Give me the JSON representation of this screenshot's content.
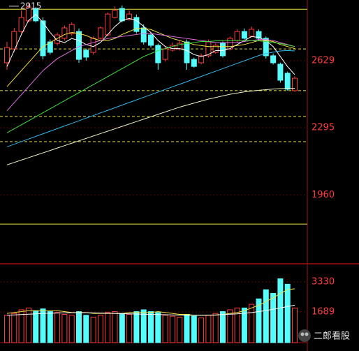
{
  "chart_data": {
    "type": "candlestick",
    "up_color": "#ff3c3c",
    "down_color": "#54fcfc",
    "open": [
      2619,
      2688,
      2775,
      2828,
      2890,
      2828,
      2723,
      2716,
      2741,
      2765,
      2775,
      2682,
      2671,
      2741,
      2758,
      2845,
      2890,
      2835,
      2845,
      2793,
      2758,
      2706,
      2636,
      2682,
      2688,
      2723,
      2636,
      2619,
      2654,
      2671,
      2716,
      2688,
      2730,
      2775,
      2751,
      2775,
      2741,
      2654,
      2612,
      2567,
      2480
    ],
    "high": [
      2723,
      2793,
      2880,
      2915,
      2896.31,
      2845,
      2735,
      2770,
      2805,
      2820,
      2790,
      2690,
      2750,
      2800,
      2870,
      2900,
      2905,
      2880,
      2860,
      2810,
      2770,
      2715,
      2700,
      2720,
      2730,
      2735,
      2645,
      2665,
      2735,
      2715,
      2725,
      2750,
      2785,
      2790,
      2800,
      2785,
      2750,
      2665,
      2620,
      2575,
      2550
    ],
    "low": [
      2584,
      2671,
      2765,
      2820,
      2820,
      2636,
      2660,
      2705,
      2730,
      2755,
      2619,
      2630,
      2660,
      2735,
      2750,
      2840,
      2820,
      2830,
      2765,
      2710,
      2695,
      2584,
      2625,
      2675,
      2680,
      2584,
      2595,
      2612,
      2645,
      2665,
      2645,
      2680,
      2720,
      2735,
      2745,
      2730,
      2640,
      2610,
      2520,
      2480,
      2475
    ],
    "close": [
      2695,
      2775,
      2845,
      2897,
      2828,
      2654,
      2671,
      2758,
      2793,
      2810,
      2636,
      2647,
      2741,
      2793,
      2862,
      2880,
      2828,
      2862,
      2775,
      2723,
      2706,
      2619,
      2688,
      2706,
      2716,
      2619,
      2601,
      2654,
      2723,
      2706,
      2654,
      2741,
      2775,
      2741,
      2786,
      2741,
      2654,
      2619,
      2532,
      2487,
      2542
    ],
    "ma_lines": [
      {
        "color": "#ffffff",
        "values": [
          2600,
          2680,
          2760,
          2830,
          2860,
          2820,
          2770,
          2730,
          2720,
          2740,
          2730,
          2710,
          2700,
          2720,
          2760,
          2800,
          2830,
          2840,
          2830,
          2800,
          2770,
          2730,
          2700,
          2690,
          2690,
          2680,
          2660,
          2650,
          2660,
          2680,
          2680,
          2690,
          2710,
          2730,
          2750,
          2745,
          2730,
          2700,
          2650,
          2600,
          2560
        ]
      },
      {
        "color": "#f0e040",
        "values": [
          2500,
          2540,
          2580,
          2620,
          2660,
          2700,
          2720,
          2740,
          2760,
          2770,
          2765,
          2755,
          2740,
          2730,
          2730,
          2740,
          2760,
          2775,
          2790,
          2790,
          2785,
          2770,
          2755,
          2740,
          2730,
          2720,
          2710,
          2705,
          2700,
          2700,
          2700,
          2700,
          2705,
          2710,
          2720,
          2730,
          2730,
          2725,
          2710,
          2700,
          2690
        ]
      },
      {
        "color": "#e070e0",
        "values": [
          2380,
          2420,
          2460,
          2500,
          2540,
          2580,
          2610,
          2640,
          2660,
          2680,
          2700,
          2710,
          2720,
          2730,
          2740,
          2745,
          2750,
          2755,
          2760,
          2765,
          2765,
          2760,
          2755,
          2750,
          2745,
          2740,
          2735,
          2730,
          2725,
          2720,
          2720,
          2720,
          2720,
          2725,
          2730,
          2735,
          2735,
          2730,
          2720,
          2710,
          2700
        ]
      },
      {
        "color": "#40e040",
        "values": [
          2270,
          2290,
          2310,
          2330,
          2350,
          2370,
          2390,
          2410,
          2430,
          2450,
          2470,
          2490,
          2510,
          2530,
          2550,
          2570,
          2590,
          2610,
          2630,
          2650,
          2665,
          2680,
          2690,
          2700,
          2710,
          2715,
          2720,
          2725,
          2725,
          2728,
          2730,
          2730,
          2730,
          2730,
          2730,
          2728,
          2725,
          2720,
          2715,
          2708,
          2700
        ]
      },
      {
        "color": "#30b8e8",
        "values": [
          2200,
          2213,
          2226,
          2239,
          2252,
          2265,
          2278,
          2291,
          2304,
          2317,
          2330,
          2343,
          2356,
          2369,
          2382,
          2395,
          2408,
          2421,
          2434,
          2447,
          2460,
          2473,
          2486,
          2499,
          2512,
          2525,
          2538,
          2551,
          2564,
          2577,
          2590,
          2603,
          2616,
          2629,
          2642,
          2655,
          2665,
          2672,
          2678,
          2680,
          2678
        ]
      },
      {
        "color": "#f0f0c0",
        "values": [
          2110,
          2122,
          2134,
          2146,
          2158,
          2170,
          2182,
          2194,
          2206,
          2218,
          2230,
          2242,
          2254,
          2266,
          2278,
          2290,
          2302,
          2314,
          2326,
          2338,
          2350,
          2362,
          2374,
          2386,
          2398,
          2408,
          2418,
          2428,
          2438,
          2446,
          2454,
          2462,
          2468,
          2474,
          2478,
          2482,
          2485,
          2488,
          2490,
          2491,
          2492
        ]
      }
    ],
    "ylim": [
      1617,
      2932
    ],
    "yticks": [
      2629,
      2295,
      1960
    ],
    "reference_lines": [
      {
        "value": 2886,
        "dashed": false
      },
      {
        "value": 1815,
        "dashed": false
      },
      {
        "value": 2688,
        "dashed": true
      },
      {
        "value": 2480,
        "dashed": true
      },
      {
        "value": 2351,
        "dashed": true
      },
      {
        "value": 2226,
        "dashed": true
      }
    ],
    "volume": [
      1500,
      1600,
      1800,
      1900,
      1750,
      1850,
      1700,
      1650,
      1550,
      1500,
      1700,
      1500,
      1400,
      1500,
      1650,
      1700,
      1600,
      1550,
      1700,
      1800,
      1700,
      1650,
      1500,
      1450,
      1400,
      1550,
      1450,
      1350,
      1500,
      1600,
      1700,
      1800,
      1900,
      1900,
      2100,
      2400,
      2900,
      2700,
      3500,
      3200,
      1900
    ],
    "volume_ma_lines": [
      {
        "color": "#f0e040",
        "values": [
          1600,
          1650,
          1700,
          1750,
          1750,
          1750,
          1750,
          1750,
          1700,
          1650,
          1650,
          1650,
          1600,
          1600,
          1600,
          1600,
          1600,
          1650,
          1650,
          1650,
          1650,
          1700,
          1650,
          1600,
          1550,
          1550,
          1500,
          1500,
          1500,
          1500,
          1550,
          1600,
          1650,
          1750,
          1900,
          2050,
          2250,
          2450,
          2700,
          2900,
          2950
        ]
      },
      {
        "color": "#ffffff",
        "values": [
          1500,
          1520,
          1540,
          1560,
          1580,
          1600,
          1610,
          1620,
          1630,
          1640,
          1640,
          1640,
          1630,
          1620,
          1610,
          1600,
          1590,
          1580,
          1570,
          1560,
          1550,
          1540,
          1530,
          1520,
          1510,
          1500,
          1500,
          1500,
          1510,
          1520,
          1540,
          1560,
          1580,
          1610,
          1650,
          1700,
          1760,
          1830,
          1900,
          1980,
          2050
        ]
      }
    ],
    "vlim": [
      0,
      4322
    ],
    "vticks": [
      3330,
      1689
    ],
    "watermark": "二郎看股"
  }
}
